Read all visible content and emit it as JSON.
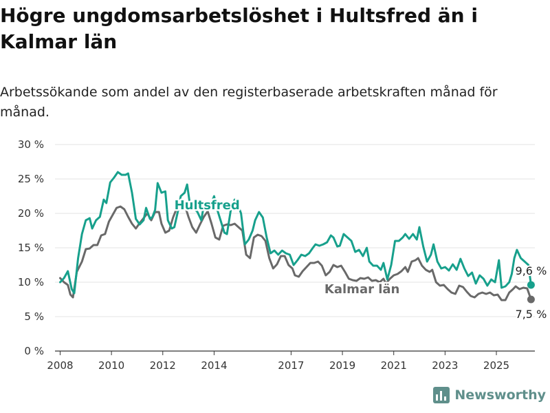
{
  "header": {
    "title": "Högre ungdomsarbetslöshet i Hultsfred än i Kalmar län",
    "subtitle": "Arbetssökande som andel av den registerbaserade arbetskraften månad för månad."
  },
  "footer": {
    "brand": "Newsworthy"
  },
  "chart_data": {
    "type": "line",
    "title": "Högre ungdomsarbetslöshet i Hultsfred än i Kalmar län",
    "subtitle": "Arbetssökande som andel av den registerbaserade arbetskraften månad för månad.",
    "xlabel": "",
    "ylabel": "",
    "x_unit": "year",
    "xlim": [
      2007.8,
      2026.5
    ],
    "ylim": [
      0,
      30
    ],
    "y_ticks": [
      0,
      5,
      10,
      15,
      20,
      25,
      30
    ],
    "y_tick_labels": [
      "0 %",
      "5 %",
      "10 %",
      "15 %",
      "20 %",
      "25 %",
      "30 %"
    ],
    "x_ticks": [
      2008,
      2010,
      2012,
      2014,
      2017,
      2019,
      2021,
      2023,
      2025
    ],
    "x_tick_labels": [
      "2008",
      "2010",
      "2012",
      "2014",
      "2017",
      "2019",
      "2021",
      "2023",
      "2025"
    ],
    "grid": "horizontal",
    "legend": "inline labels",
    "series": [
      {
        "name": "Hultsfred",
        "color": "#17a08c",
        "end_label": "9,6 %",
        "points": [
          [
            2008.0,
            10.0
          ],
          [
            2008.15,
            10.6
          ],
          [
            2008.3,
            11.6
          ],
          [
            2008.45,
            9.0
          ],
          [
            2008.55,
            8.4
          ],
          [
            2008.7,
            13.5
          ],
          [
            2008.85,
            17.0
          ],
          [
            2009.0,
            19.0
          ],
          [
            2009.15,
            19.3
          ],
          [
            2009.25,
            17.8
          ],
          [
            2009.4,
            19.0
          ],
          [
            2009.55,
            19.5
          ],
          [
            2009.7,
            22.0
          ],
          [
            2009.8,
            21.5
          ],
          [
            2009.95,
            24.5
          ],
          [
            2010.1,
            25.2
          ],
          [
            2010.25,
            26.0
          ],
          [
            2010.4,
            25.6
          ],
          [
            2010.55,
            25.6
          ],
          [
            2010.65,
            25.8
          ],
          [
            2010.8,
            23.0
          ],
          [
            2010.95,
            19.2
          ],
          [
            2011.1,
            18.4
          ],
          [
            2011.25,
            19.0
          ],
          [
            2011.35,
            20.8
          ],
          [
            2011.5,
            19.2
          ],
          [
            2011.6,
            19.5
          ],
          [
            2011.7,
            20.5
          ],
          [
            2011.8,
            24.4
          ],
          [
            2011.95,
            23.0
          ],
          [
            2012.1,
            23.2
          ],
          [
            2012.2,
            19.0
          ],
          [
            2012.35,
            17.8
          ],
          [
            2012.45,
            18.0
          ],
          [
            2012.6,
            20.5
          ],
          [
            2012.7,
            22.5
          ],
          [
            2012.85,
            23.0
          ],
          [
            2012.95,
            24.2
          ],
          [
            2013.05,
            21.5
          ],
          [
            2013.2,
            20.8
          ],
          [
            2013.35,
            20.2
          ],
          [
            2013.5,
            19.0
          ],
          [
            2013.6,
            21.2
          ],
          [
            2013.75,
            20.5
          ],
          [
            2013.9,
            21.5
          ],
          [
            2014.0,
            22.5
          ],
          [
            2014.1,
            20.8
          ],
          [
            2014.25,
            19.0
          ],
          [
            2014.4,
            17.2
          ],
          [
            2014.5,
            17.0
          ],
          [
            2014.65,
            20.5
          ],
          [
            2014.8,
            22.0
          ],
          [
            2014.95,
            21.0
          ],
          [
            2015.05,
            20.0
          ],
          [
            2015.2,
            15.5
          ],
          [
            2015.35,
            16.2
          ],
          [
            2015.5,
            17.5
          ],
          [
            2015.6,
            19.0
          ],
          [
            2015.75,
            20.2
          ],
          [
            2015.9,
            19.4
          ],
          [
            2016.05,
            16.5
          ],
          [
            2016.2,
            14.2
          ],
          [
            2016.35,
            14.6
          ],
          [
            2016.5,
            14.0
          ],
          [
            2016.65,
            14.6
          ],
          [
            2016.8,
            14.2
          ],
          [
            2016.95,
            14.0
          ],
          [
            2017.1,
            12.5
          ],
          [
            2017.25,
            13.2
          ],
          [
            2017.4,
            14.0
          ],
          [
            2017.55,
            13.8
          ],
          [
            2017.7,
            14.2
          ],
          [
            2017.85,
            15.0
          ],
          [
            2017.95,
            15.5
          ],
          [
            2018.1,
            15.3
          ],
          [
            2018.25,
            15.5
          ],
          [
            2018.4,
            15.8
          ],
          [
            2018.55,
            16.8
          ],
          [
            2018.65,
            16.5
          ],
          [
            2018.8,
            15.2
          ],
          [
            2018.9,
            15.3
          ],
          [
            2019.05,
            17.0
          ],
          [
            2019.2,
            16.5
          ],
          [
            2019.35,
            16.0
          ],
          [
            2019.5,
            14.4
          ],
          [
            2019.65,
            14.7
          ],
          [
            2019.8,
            13.8
          ],
          [
            2019.95,
            15.0
          ],
          [
            2020.05,
            13.0
          ],
          [
            2020.2,
            12.4
          ],
          [
            2020.35,
            12.4
          ],
          [
            2020.5,
            11.8
          ],
          [
            2020.6,
            12.8
          ],
          [
            2020.75,
            10.4
          ],
          [
            2020.9,
            12.5
          ],
          [
            2021.05,
            16.0
          ],
          [
            2021.2,
            16.0
          ],
          [
            2021.35,
            16.5
          ],
          [
            2021.45,
            17.0
          ],
          [
            2021.6,
            16.3
          ],
          [
            2021.75,
            17.0
          ],
          [
            2021.9,
            16.2
          ],
          [
            2022.0,
            18.0
          ],
          [
            2022.15,
            15.2
          ],
          [
            2022.3,
            13.0
          ],
          [
            2022.45,
            14.0
          ],
          [
            2022.55,
            15.5
          ],
          [
            2022.7,
            13.0
          ],
          [
            2022.85,
            12.0
          ],
          [
            2023.0,
            12.2
          ],
          [
            2023.15,
            11.7
          ],
          [
            2023.3,
            12.6
          ],
          [
            2023.45,
            11.8
          ],
          [
            2023.6,
            13.4
          ],
          [
            2023.75,
            12.0
          ],
          [
            2023.9,
            10.9
          ],
          [
            2024.05,
            11.4
          ],
          [
            2024.2,
            9.8
          ],
          [
            2024.35,
            11.0
          ],
          [
            2024.5,
            10.5
          ],
          [
            2024.65,
            9.5
          ],
          [
            2024.8,
            10.4
          ],
          [
            2024.95,
            10.0
          ],
          [
            2025.1,
            13.2
          ],
          [
            2025.2,
            9.2
          ],
          [
            2025.35,
            9.4
          ],
          [
            2025.5,
            10.0
          ],
          [
            2025.6,
            11.2
          ],
          [
            2025.7,
            13.5
          ],
          [
            2025.8,
            14.7
          ],
          [
            2025.95,
            13.5
          ],
          [
            2026.1,
            13.0
          ],
          [
            2026.25,
            12.5
          ],
          [
            2026.35,
            9.6
          ]
        ]
      },
      {
        "name": "Kalmar län",
        "color": "#696969",
        "end_label": "7,5 %",
        "points": [
          [
            2008.0,
            10.6
          ],
          [
            2008.15,
            10.0
          ],
          [
            2008.3,
            9.6
          ],
          [
            2008.4,
            8.2
          ],
          [
            2008.5,
            7.8
          ],
          [
            2008.65,
            11.5
          ],
          [
            2008.85,
            13.0
          ],
          [
            2009.0,
            14.8
          ],
          [
            2009.15,
            14.9
          ],
          [
            2009.3,
            15.4
          ],
          [
            2009.45,
            15.4
          ],
          [
            2009.6,
            16.8
          ],
          [
            2009.75,
            17.0
          ],
          [
            2009.9,
            18.8
          ],
          [
            2010.05,
            19.8
          ],
          [
            2010.2,
            20.8
          ],
          [
            2010.35,
            21.0
          ],
          [
            2010.5,
            20.6
          ],
          [
            2010.65,
            19.5
          ],
          [
            2010.8,
            18.5
          ],
          [
            2010.95,
            17.8
          ],
          [
            2011.1,
            18.6
          ],
          [
            2011.25,
            19.3
          ],
          [
            2011.4,
            20.0
          ],
          [
            2011.55,
            19.0
          ],
          [
            2011.7,
            20.2
          ],
          [
            2011.85,
            20.2
          ],
          [
            2011.95,
            18.5
          ],
          [
            2012.1,
            17.2
          ],
          [
            2012.25,
            17.5
          ],
          [
            2012.4,
            19.4
          ],
          [
            2012.55,
            20.8
          ],
          [
            2012.7,
            21.8
          ],
          [
            2012.85,
            21.3
          ],
          [
            2013.0,
            19.5
          ],
          [
            2013.15,
            18.0
          ],
          [
            2013.3,
            17.2
          ],
          [
            2013.45,
            18.4
          ],
          [
            2013.6,
            19.5
          ],
          [
            2013.75,
            20.3
          ],
          [
            2013.9,
            18.5
          ],
          [
            2014.05,
            16.5
          ],
          [
            2014.2,
            16.2
          ],
          [
            2014.35,
            18.2
          ],
          [
            2014.5,
            18.4
          ],
          [
            2014.65,
            18.3
          ],
          [
            2014.8,
            18.5
          ],
          [
            2014.95,
            18.0
          ],
          [
            2015.1,
            17.5
          ],
          [
            2015.25,
            14.0
          ],
          [
            2015.4,
            13.5
          ],
          [
            2015.55,
            16.5
          ],
          [
            2015.7,
            16.9
          ],
          [
            2015.85,
            16.7
          ],
          [
            2016.0,
            16.0
          ],
          [
            2016.15,
            13.5
          ],
          [
            2016.3,
            12.0
          ],
          [
            2016.45,
            12.6
          ],
          [
            2016.6,
            13.8
          ],
          [
            2016.75,
            13.8
          ],
          [
            2016.9,
            12.5
          ],
          [
            2017.05,
            12.0
          ],
          [
            2017.15,
            11.0
          ],
          [
            2017.3,
            10.8
          ],
          [
            2017.45,
            11.6
          ],
          [
            2017.6,
            12.2
          ],
          [
            2017.75,
            12.8
          ],
          [
            2017.9,
            12.8
          ],
          [
            2018.05,
            13.0
          ],
          [
            2018.2,
            12.4
          ],
          [
            2018.35,
            11.0
          ],
          [
            2018.5,
            11.5
          ],
          [
            2018.65,
            12.5
          ],
          [
            2018.8,
            12.2
          ],
          [
            2018.95,
            12.4
          ],
          [
            2019.1,
            11.5
          ],
          [
            2019.25,
            10.5
          ],
          [
            2019.4,
            10.3
          ],
          [
            2019.55,
            10.2
          ],
          [
            2019.7,
            10.6
          ],
          [
            2019.85,
            10.5
          ],
          [
            2020.0,
            10.7
          ],
          [
            2020.15,
            10.2
          ],
          [
            2020.3,
            10.3
          ],
          [
            2020.45,
            10.0
          ],
          [
            2020.6,
            10.5
          ],
          [
            2020.7,
            9.8
          ],
          [
            2020.85,
            10.5
          ],
          [
            2021.0,
            11.0
          ],
          [
            2021.15,
            11.2
          ],
          [
            2021.3,
            11.6
          ],
          [
            2021.45,
            12.2
          ],
          [
            2021.55,
            11.5
          ],
          [
            2021.7,
            13.0
          ],
          [
            2021.85,
            13.2
          ],
          [
            2021.95,
            13.5
          ],
          [
            2022.1,
            12.4
          ],
          [
            2022.25,
            11.8
          ],
          [
            2022.4,
            11.5
          ],
          [
            2022.5,
            11.8
          ],
          [
            2022.65,
            10.0
          ],
          [
            2022.8,
            9.5
          ],
          [
            2022.95,
            9.6
          ],
          [
            2023.1,
            9.0
          ],
          [
            2023.25,
            8.5
          ],
          [
            2023.4,
            8.3
          ],
          [
            2023.55,
            9.5
          ],
          [
            2023.7,
            9.3
          ],
          [
            2023.85,
            8.6
          ],
          [
            2024.0,
            8.0
          ],
          [
            2024.15,
            7.8
          ],
          [
            2024.3,
            8.3
          ],
          [
            2024.45,
            8.5
          ],
          [
            2024.6,
            8.3
          ],
          [
            2024.75,
            8.5
          ],
          [
            2024.9,
            8.1
          ],
          [
            2025.05,
            8.2
          ],
          [
            2025.2,
            7.4
          ],
          [
            2025.35,
            7.4
          ],
          [
            2025.5,
            8.5
          ],
          [
            2025.65,
            9.0
          ],
          [
            2025.75,
            9.4
          ],
          [
            2025.9,
            9.0
          ],
          [
            2026.05,
            9.2
          ],
          [
            2026.2,
            9.1
          ],
          [
            2026.35,
            7.5
          ]
        ]
      }
    ]
  }
}
